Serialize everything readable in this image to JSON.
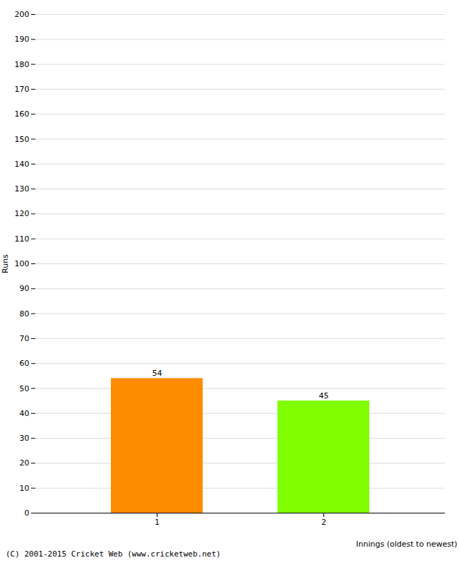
{
  "chart_data": {
    "type": "bar",
    "categories": [
      "1",
      "2"
    ],
    "values": [
      54,
      45
    ],
    "colors": [
      "#FF8C00",
      "#7FFF00"
    ],
    "xlabel": "Innings (oldest to newest)",
    "ylabel": "Runs",
    "ylim": [
      0,
      200
    ],
    "yticks": [
      0,
      10,
      20,
      30,
      40,
      50,
      60,
      70,
      80,
      90,
      100,
      110,
      120,
      130,
      140,
      150,
      160,
      170,
      180,
      190,
      200
    ],
    "grid": true,
    "data_labels": true,
    "annotations": [
      "(C) 2001-2015 Cricket Web (www.cricketweb.net)"
    ]
  }
}
